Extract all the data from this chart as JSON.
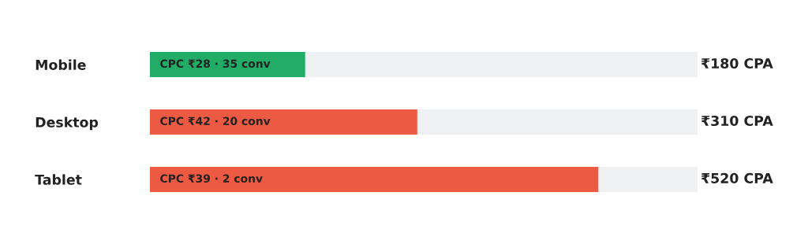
{
  "chart_data": {
    "type": "bar",
    "orientation": "horizontal",
    "categories": [
      "Mobile",
      "Desktop",
      "Tablet"
    ],
    "values": [
      180,
      310,
      520
    ],
    "value_labels": [
      "₹180 CPA",
      "₹310 CPA",
      "₹520 CPA"
    ],
    "colors": [
      "#22ad67",
      "#ec5a44",
      "#ec5a44"
    ],
    "annotations": [
      "CPC ₹28 · 35 conv",
      "CPC ₹42 · 20 conv",
      "CPC ₹39 · 2 conv"
    ],
    "xlim": [
      0,
      635
    ],
    "tick_labels": "y",
    "grid": false,
    "legend": false
  }
}
